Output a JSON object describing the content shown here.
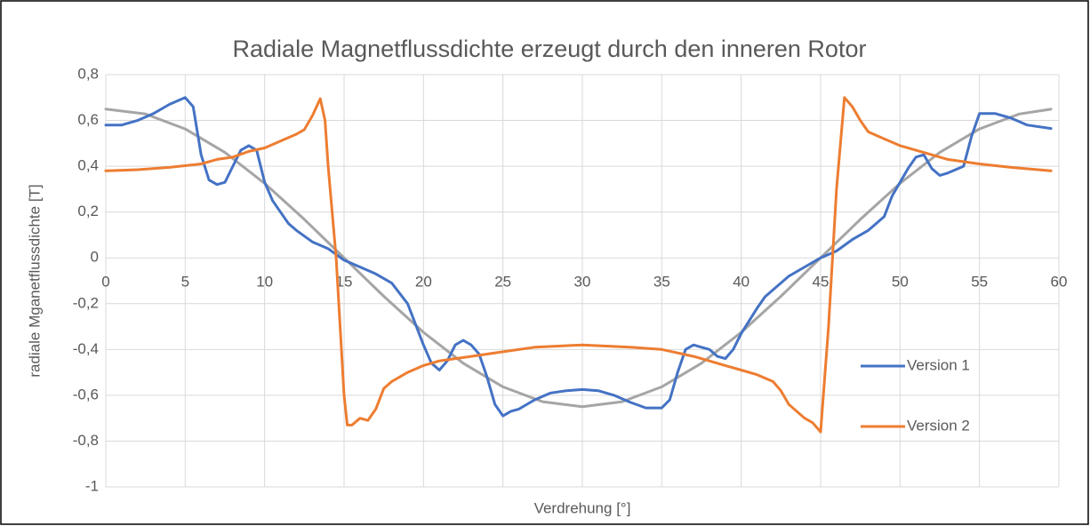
{
  "chart_data": {
    "type": "line",
    "title": "Radiale Magnetflussdichte erzeugt durch den inneren Rotor",
    "x_label": "Verdrehung [°]",
    "y_label": "radiale Mganetflussdichte [T]",
    "xlim": [
      0,
      60
    ],
    "xticks": [
      0,
      5,
      10,
      15,
      20,
      25,
      30,
      35,
      40,
      45,
      50,
      55,
      60
    ],
    "ylim": [
      -1,
      0.8
    ],
    "yticks": [
      -1,
      {
        "value": -0.8,
        "label": "-0,8"
      },
      {
        "value": -0.6,
        "label": "-0,6"
      },
      {
        "value": -0.4,
        "label": "-0,4"
      },
      {
        "value": -0.2,
        "label": "-0,2"
      },
      0,
      {
        "value": 0.2,
        "label": "0,2"
      },
      {
        "value": 0.4,
        "label": "0,4"
      },
      {
        "value": 0.6,
        "label": "0,6"
      },
      {
        "value": 0.8,
        "label": "0,8"
      }
    ],
    "grid": true,
    "legend": "right",
    "series": [
      {
        "name": "Version 1",
        "color": "#4472c4",
        "x": [
          0,
          1,
          2,
          3,
          4,
          5,
          5.5,
          6,
          6.5,
          7,
          7.5,
          8,
          8.5,
          9,
          9.5,
          10,
          10.5,
          11,
          11.5,
          12,
          13,
          14,
          15,
          16,
          17,
          18,
          19,
          20,
          20.5,
          21,
          21.5,
          22,
          22.5,
          23,
          23.5,
          24,
          24.5,
          25,
          25.5,
          26,
          27,
          28,
          29,
          30,
          31,
          32,
          33,
          34,
          35,
          35.5,
          36,
          36.5,
          37,
          37.5,
          38,
          38.5,
          39,
          39.5,
          40,
          41,
          41.5,
          42,
          43,
          44,
          45,
          46,
          47,
          48,
          49,
          49.5,
          50,
          50.5,
          51,
          51.5,
          52,
          52.5,
          53,
          54,
          54.5,
          55,
          55.5,
          56,
          57,
          58,
          59.5
        ],
        "values": [
          0.58,
          0.58,
          0.6,
          0.63,
          0.67,
          0.7,
          0.66,
          0.45,
          0.34,
          0.32,
          0.33,
          0.4,
          0.47,
          0.49,
          0.47,
          0.33,
          0.25,
          0.2,
          0.15,
          0.12,
          0.07,
          0.04,
          -0.01,
          -0.04,
          -0.07,
          -0.11,
          -0.2,
          -0.38,
          -0.46,
          -0.49,
          -0.45,
          -0.38,
          -0.36,
          -0.38,
          -0.42,
          -0.52,
          -0.64,
          -0.69,
          -0.67,
          -0.66,
          -0.62,
          -0.59,
          -0.58,
          -0.575,
          -0.58,
          -0.6,
          -0.63,
          -0.655,
          -0.655,
          -0.62,
          -0.5,
          -0.4,
          -0.38,
          -0.39,
          -0.4,
          -0.43,
          -0.44,
          -0.4,
          -0.33,
          -0.22,
          -0.17,
          -0.14,
          -0.08,
          -0.04,
          0,
          0.03,
          0.08,
          0.12,
          0.18,
          0.27,
          0.33,
          0.39,
          0.44,
          0.45,
          0.39,
          0.36,
          0.37,
          0.4,
          0.53,
          0.63,
          0.63,
          0.63,
          0.61,
          0.58,
          0.565
        ]
      },
      {
        "name": "Version 2",
        "color": "#ed7d31",
        "x": [
          0,
          2,
          4,
          6,
          7,
          8,
          9,
          10,
          11,
          12,
          12.5,
          13,
          13.5,
          13.8,
          14,
          14.5,
          15,
          15.2,
          15.5,
          16,
          16.5,
          17,
          17.5,
          18,
          19,
          20,
          21,
          22,
          23,
          25,
          27,
          30,
          33,
          35,
          37,
          38,
          39,
          40,
          41,
          42,
          42.5,
          43,
          44,
          44.5,
          45,
          45.5,
          46,
          46.5,
          47,
          47.5,
          48,
          49,
          50,
          51,
          52,
          53,
          55,
          57,
          59.5
        ],
        "values": [
          0.38,
          0.385,
          0.395,
          0.41,
          0.43,
          0.44,
          0.465,
          0.48,
          0.51,
          0.54,
          0.56,
          0.62,
          0.695,
          0.6,
          0.4,
          0,
          -0.6,
          -0.73,
          -0.73,
          -0.7,
          -0.71,
          -0.66,
          -0.57,
          -0.54,
          -0.5,
          -0.47,
          -0.45,
          -0.44,
          -0.43,
          -0.41,
          -0.39,
          -0.38,
          -0.39,
          -0.4,
          -0.43,
          -0.45,
          -0.47,
          -0.49,
          -0.51,
          -0.54,
          -0.58,
          -0.64,
          -0.7,
          -0.72,
          -0.76,
          -0.3,
          0.3,
          0.7,
          0.66,
          0.6,
          0.55,
          0.52,
          0.49,
          0.47,
          0.45,
          0.43,
          0.41,
          0.395,
          0.38
        ]
      },
      {
        "color": "#a5a5a5",
        "x": [
          0,
          2.5,
          5,
          7.5,
          10,
          12.5,
          15,
          17.5,
          20,
          22.5,
          25,
          27.5,
          30,
          32.5,
          35,
          37.5,
          40,
          42.5,
          45,
          47.5,
          50,
          52.5,
          55,
          57.5,
          59.5
        ],
        "values": [
          0.65,
          0.628,
          0.563,
          0.46,
          0.325,
          0.168,
          0,
          -0.168,
          -0.325,
          -0.46,
          -0.563,
          -0.628,
          -0.65,
          -0.628,
          -0.563,
          -0.46,
          -0.325,
          -0.168,
          0,
          0.168,
          0.325,
          0.46,
          0.563,
          0.628,
          0.649
        ]
      }
    ]
  }
}
